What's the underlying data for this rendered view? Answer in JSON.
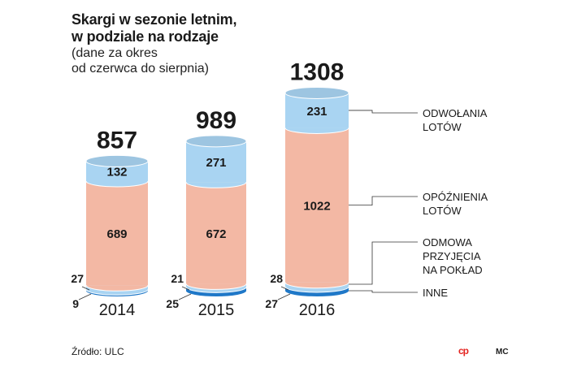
{
  "title": {
    "line1": "Skargi w sezonie letnim,",
    "line2": "w podziale na rodzaje",
    "line3": "(dane za okres",
    "line4": "od czerwca do sierpnia)"
  },
  "source": "Źródło: ULC",
  "logo": "cp",
  "author": "MC",
  "chart_data": {
    "type": "bar",
    "stacked": true,
    "categories": [
      "2014",
      "2015",
      "2016"
    ],
    "totals": [
      857,
      989,
      1308
    ],
    "series": [
      {
        "name": "INNE",
        "values": [
          9,
          25,
          27
        ],
        "color": "#1f78c8"
      },
      {
        "name": "ODMOWA PRZYJĘCIA NA POKŁAD",
        "values": [
          27,
          21,
          28
        ],
        "color": "#a9d4f2"
      },
      {
        "name": "OPÓŹNIENIA LOTÓW",
        "values": [
          689,
          672,
          1022
        ],
        "color": "#f3b8a4"
      },
      {
        "name": "ODWOŁANIA LOTÓW",
        "values": [
          132,
          271,
          231
        ],
        "color": "#a9d4f2"
      }
    ],
    "legend": [
      {
        "lines": [
          "ODWOŁANIA",
          "LOTÓW"
        ]
      },
      {
        "lines": [
          "OPÓŹNIENIA",
          "LOTÓW"
        ]
      },
      {
        "lines": [
          "ODMOWA",
          "PRZYJĘCIA",
          "NA POKŁAD"
        ]
      },
      {
        "lines": [
          "INNE"
        ]
      }
    ],
    "legend_position": "right"
  }
}
